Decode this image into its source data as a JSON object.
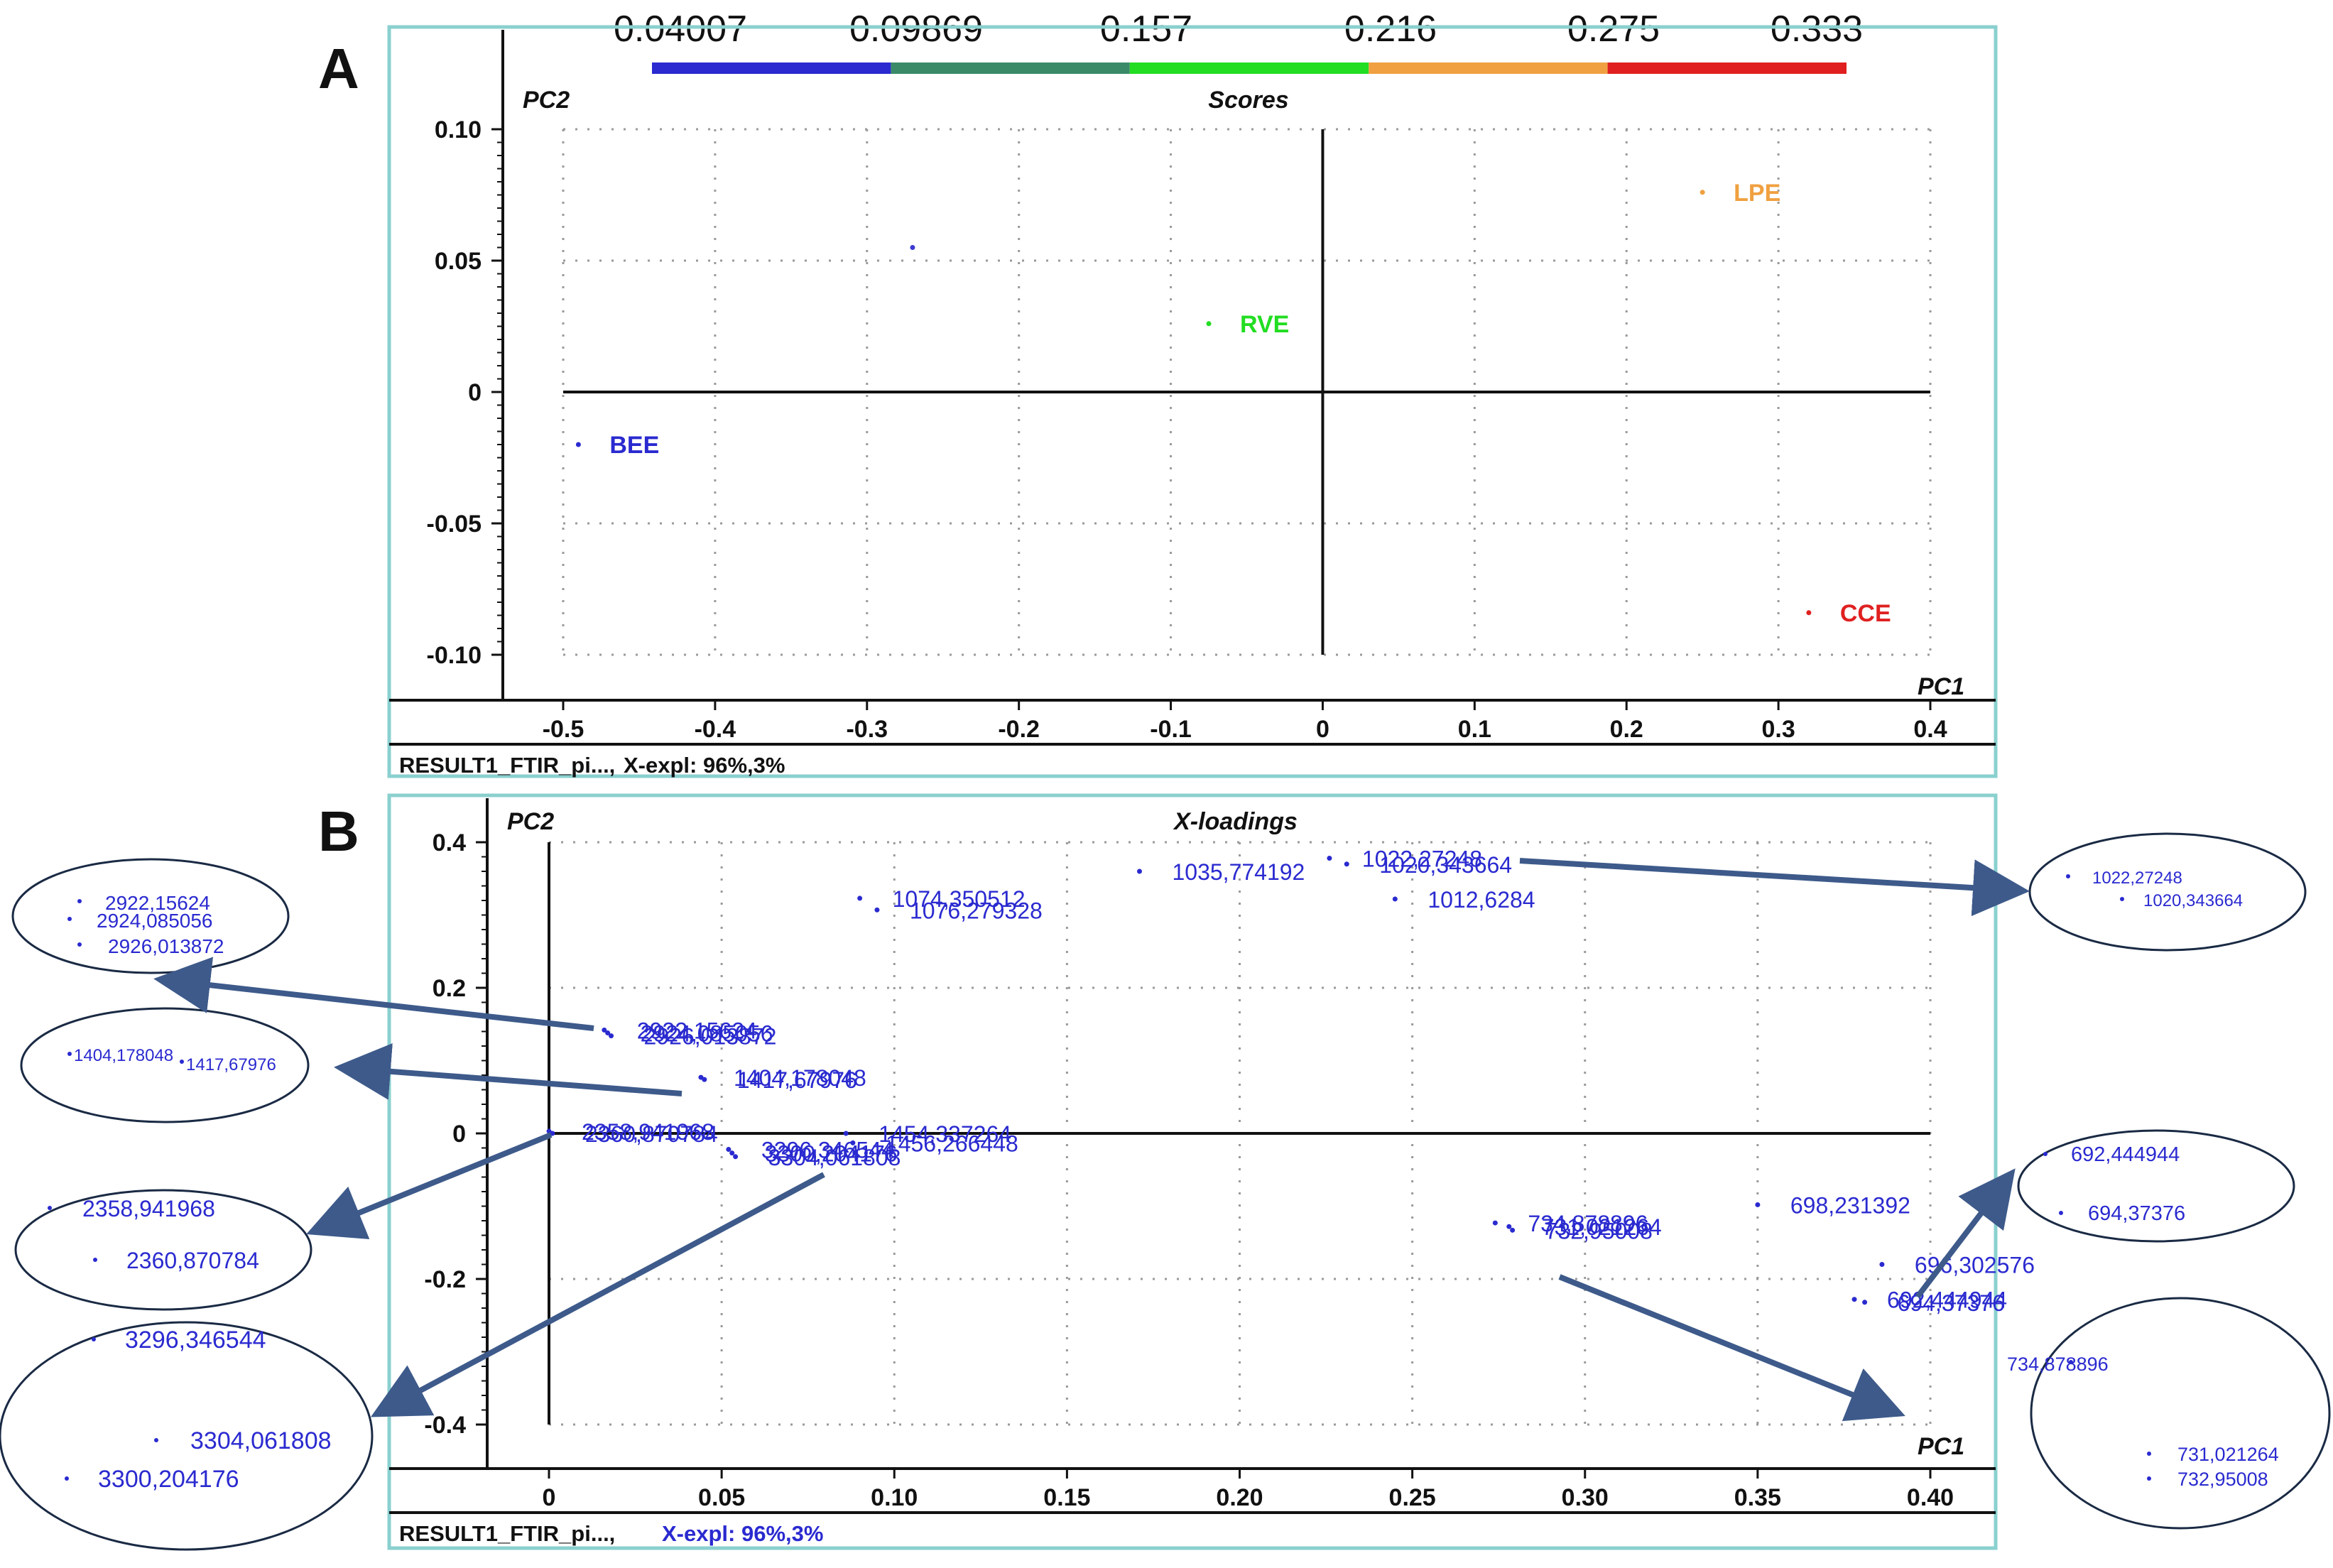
{
  "colors": {
    "frame": "#8ad0cf",
    "blue": "#2a2ad0",
    "teal": "#3a8a68",
    "green": "#22dd22",
    "orange": "#f0a040",
    "red": "#e02020",
    "axis": "#111111",
    "arrow": "#3d5a8a"
  },
  "colorbar": {
    "labels": [
      "0.04007",
      "0.09869",
      "0.157",
      "0.216",
      "0.275",
      "0.333"
    ],
    "segments": [
      "#2a2ad0",
      "#3a8a68",
      "#22dd22",
      "#f0a040",
      "#e02020"
    ]
  },
  "panel_a": {
    "letter": "A",
    "footer_name": "RESULT1_FTIR_pi...,",
    "footer_expl": "X-expl: 96%,3%"
  },
  "panel_b": {
    "letter": "B",
    "footer_name": "RESULT1_FTIR_pi...,",
    "footer_expl": "X-expl: 96%,3%"
  },
  "chart_data": [
    {
      "type": "scatter",
      "title": "Scores",
      "xlabel": "PC1",
      "ylabel": "PC2",
      "xlim": [
        -0.5,
        0.4
      ],
      "ylim": [
        -0.1,
        0.1
      ],
      "xticks": [
        "-0.5",
        "-0.4",
        "-0.3",
        "-0.2",
        "-0.1",
        "0",
        "0.1",
        "0.2",
        "0.3",
        "0.4"
      ],
      "yticks": [
        "0.10",
        "0.05",
        "0",
        "-0.05",
        "-0.10"
      ],
      "grid": true,
      "points": [
        {
          "label": "BEE",
          "x": -0.49,
          "y": -0.02,
          "color": "#2a2ad0"
        },
        {
          "label": "",
          "x": -0.27,
          "y": 0.055,
          "color": "#3a3ad0"
        },
        {
          "label": "RVE",
          "x": -0.075,
          "y": 0.026,
          "color": "#22dd22"
        },
        {
          "label": "LPE",
          "x": 0.25,
          "y": 0.076,
          "color": "#f0a040"
        },
        {
          "label": "CCE",
          "x": 0.32,
          "y": -0.084,
          "color": "#e02020"
        }
      ]
    },
    {
      "type": "scatter",
      "title": "X-loadings",
      "xlabel": "PC1",
      "ylabel": "PC2",
      "xlim": [
        0,
        0.4
      ],
      "ylim": [
        -0.4,
        0.4
      ],
      "xticks": [
        "0",
        "0.05",
        "0.10",
        "0.15",
        "0.20",
        "0.25",
        "0.30",
        "0.35",
        "0.40"
      ],
      "yticks": [
        "0.4",
        "0.2",
        "0",
        "-0.2",
        "-0.4"
      ],
      "grid": true,
      "points": [
        {
          "label": "1022,27248",
          "x": 0.226,
          "y": 0.378
        },
        {
          "label": "1020,343664",
          "x": 0.231,
          "y": 0.37
        },
        {
          "label": "1035,774192",
          "x": 0.171,
          "y": 0.36
        },
        {
          "label": "1012,6284",
          "x": 0.245,
          "y": 0.322
        },
        {
          "label": "1074,350512",
          "x": 0.09,
          "y": 0.323
        },
        {
          "label": "1076,279328",
          "x": 0.095,
          "y": 0.307
        },
        {
          "label": "2922,15624",
          "x": 0.016,
          "y": 0.142
        },
        {
          "label": "2924,085056",
          "x": 0.017,
          "y": 0.138
        },
        {
          "label": "2926,013872",
          "x": 0.018,
          "y": 0.134
        },
        {
          "label": "1404,178048",
          "x": 0.044,
          "y": 0.077
        },
        {
          "label": "1417,67976",
          "x": 0.045,
          "y": 0.074
        },
        {
          "label": "2358,941968",
          "x": 0.0,
          "y": 0.003
        },
        {
          "label": "2360,870784",
          "x": 0.001,
          "y": 0.0
        },
        {
          "label": "1454,337264",
          "x": 0.086,
          "y": 0.0
        },
        {
          "label": "1456,266448",
          "x": 0.088,
          "y": -0.013
        },
        {
          "label": "3296,346544",
          "x": 0.052,
          "y": -0.022
        },
        {
          "label": "3300,204176",
          "x": 0.053,
          "y": -0.027
        },
        {
          "label": "3304,061808",
          "x": 0.054,
          "y": -0.032
        },
        {
          "label": "734,878896",
          "x": 0.274,
          "y": -0.123
        },
        {
          "label": "731,021264",
          "x": 0.278,
          "y": -0.128
        },
        {
          "label": "732,95008",
          "x": 0.279,
          "y": -0.133
        },
        {
          "label": "698,231392",
          "x": 0.35,
          "y": -0.098
        },
        {
          "label": "696,302576",
          "x": 0.386,
          "y": -0.18
        },
        {
          "label": "692,444944",
          "x": 0.378,
          "y": -0.228
        },
        {
          "label": "694,37376",
          "x": 0.381,
          "y": -0.232
        }
      ]
    }
  ],
  "zoom_a": [
    {
      "label": "2922,15624"
    },
    {
      "label": "2924,085056"
    },
    {
      "label": "2926,013872"
    }
  ],
  "zoom_b": [
    {
      "label": "1404,178048"
    },
    {
      "label": "1417,67976"
    }
  ],
  "zoom_c": [
    {
      "label": "2358,941968"
    },
    {
      "label": "2360,870784"
    }
  ],
  "zoom_d": [
    {
      "label": "3296,346544"
    },
    {
      "label": "3304,061808"
    },
    {
      "label": "3300,204176"
    }
  ],
  "zoom_e": [
    {
      "label": "1022,27248"
    },
    {
      "label": "1020,343664"
    }
  ],
  "zoom_f": [
    {
      "label": "692,444944"
    },
    {
      "label": "694,37376"
    }
  ],
  "zoom_g": [
    {
      "label": "734,878896"
    },
    {
      "label": "731,021264"
    },
    {
      "label": "732,95008"
    }
  ]
}
